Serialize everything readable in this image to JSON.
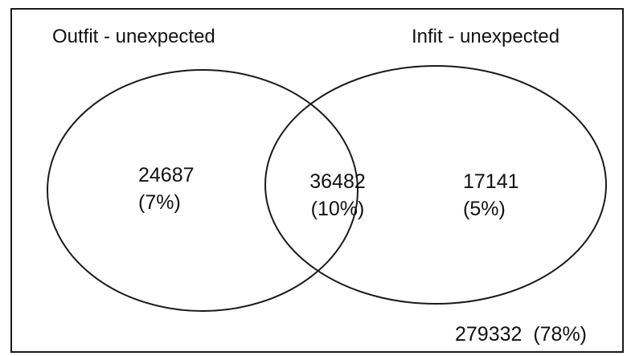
{
  "diagram": {
    "set_left_label": "Outfit - unexpected",
    "set_right_label": "Infit - unexpected",
    "regions": {
      "left_only": {
        "count": "24687",
        "percent": "(7%)"
      },
      "intersection": {
        "count": "36482",
        "percent": "(10%)"
      },
      "right_only": {
        "count": "17141",
        "percent": "(5%)"
      },
      "outside": {
        "text": "279332  (78%)"
      }
    },
    "stroke_color": "#1a1a1a"
  }
}
